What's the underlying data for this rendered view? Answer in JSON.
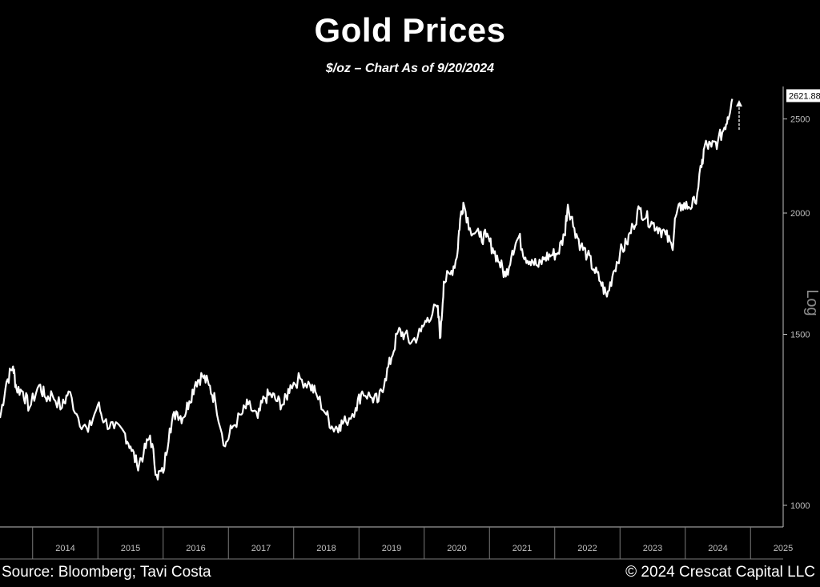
{
  "header": {
    "title": "Gold Prices",
    "subtitle": "$/oz – Chart As of 9/20/2024"
  },
  "footer": {
    "source": "Source: Bloomberg; Tavi Costa",
    "copyright": "© 2024 Crescat Capital LLC"
  },
  "chart_data": {
    "type": "line",
    "title": "Gold Prices",
    "subtitle": "$/oz – Chart As of 9/20/2024",
    "y_scale": "log",
    "y_axis_label": "Log",
    "y_ticks": [
      1000,
      1500,
      2000,
      2500
    ],
    "ylim": [
      950,
      2700
    ],
    "x_ticks": [
      "2014",
      "2015",
      "2016",
      "2017",
      "2018",
      "2019",
      "2020",
      "2021",
      "2022",
      "2023",
      "2024",
      "2025"
    ],
    "xlim": [
      2013.5,
      2025.5
    ],
    "last_value_label": "2621.88",
    "colors": {
      "background": "#000000",
      "line": "#ffffff",
      "axis": "#bfbfbf"
    },
    "series": [
      {
        "values": [
          [
            2013.5,
            1230
          ],
          [
            2013.6,
            1340
          ],
          [
            2013.7,
            1390
          ],
          [
            2013.75,
            1320
          ],
          [
            2013.85,
            1310
          ],
          [
            2013.95,
            1260
          ],
          [
            2014.1,
            1330
          ],
          [
            2014.2,
            1290
          ],
          [
            2014.3,
            1300
          ],
          [
            2014.45,
            1260
          ],
          [
            2014.55,
            1310
          ],
          [
            2014.7,
            1230
          ],
          [
            2014.85,
            1190
          ],
          [
            2015.0,
            1270
          ],
          [
            2015.1,
            1220
          ],
          [
            2015.25,
            1200
          ],
          [
            2015.4,
            1190
          ],
          [
            2015.5,
            1150
          ],
          [
            2015.6,
            1100
          ],
          [
            2015.7,
            1130
          ],
          [
            2015.8,
            1180
          ],
          [
            2015.9,
            1075
          ],
          [
            2016.0,
            1080
          ],
          [
            2016.1,
            1200
          ],
          [
            2016.2,
            1250
          ],
          [
            2016.3,
            1230
          ],
          [
            2016.4,
            1280
          ],
          [
            2016.5,
            1340
          ],
          [
            2016.6,
            1360
          ],
          [
            2016.7,
            1330
          ],
          [
            2016.8,
            1280
          ],
          [
            2016.95,
            1150
          ],
          [
            2017.05,
            1200
          ],
          [
            2017.2,
            1240
          ],
          [
            2017.3,
            1270
          ],
          [
            2017.45,
            1230
          ],
          [
            2017.55,
            1290
          ],
          [
            2017.65,
            1300
          ],
          [
            2017.75,
            1280
          ],
          [
            2017.85,
            1270
          ],
          [
            2017.95,
            1330
          ],
          [
            2018.1,
            1350
          ],
          [
            2018.25,
            1330
          ],
          [
            2018.35,
            1300
          ],
          [
            2018.5,
            1240
          ],
          [
            2018.6,
            1200
          ],
          [
            2018.7,
            1210
          ],
          [
            2018.8,
            1220
          ],
          [
            2018.95,
            1260
          ],
          [
            2019.05,
            1310
          ],
          [
            2019.2,
            1290
          ],
          [
            2019.3,
            1280
          ],
          [
            2019.4,
            1350
          ],
          [
            2019.5,
            1420
          ],
          [
            2019.6,
            1510
          ],
          [
            2019.7,
            1500
          ],
          [
            2019.8,
            1470
          ],
          [
            2019.95,
            1510
          ],
          [
            2020.05,
            1560
          ],
          [
            2020.2,
            1600
          ],
          [
            2020.25,
            1490
          ],
          [
            2020.3,
            1700
          ],
          [
            2020.4,
            1730
          ],
          [
            2020.5,
            1800
          ],
          [
            2020.55,
            1970
          ],
          [
            2020.6,
            2050
          ],
          [
            2020.7,
            1930
          ],
          [
            2020.85,
            1890
          ],
          [
            2020.95,
            1890
          ],
          [
            2021.05,
            1840
          ],
          [
            2021.15,
            1780
          ],
          [
            2021.25,
            1720
          ],
          [
            2021.35,
            1830
          ],
          [
            2021.45,
            1890
          ],
          [
            2021.55,
            1800
          ],
          [
            2021.65,
            1790
          ],
          [
            2021.75,
            1760
          ],
          [
            2021.85,
            1800
          ],
          [
            2021.95,
            1810
          ],
          [
            2022.05,
            1820
          ],
          [
            2022.15,
            1900
          ],
          [
            2022.2,
            2040
          ],
          [
            2022.3,
            1930
          ],
          [
            2022.4,
            1850
          ],
          [
            2022.5,
            1810
          ],
          [
            2022.6,
            1750
          ],
          [
            2022.7,
            1700
          ],
          [
            2022.8,
            1640
          ],
          [
            2022.9,
            1740
          ],
          [
            2023.0,
            1820
          ],
          [
            2023.1,
            1860
          ],
          [
            2023.2,
            1940
          ],
          [
            2023.3,
            2020
          ],
          [
            2023.4,
            1980
          ],
          [
            2023.5,
            1950
          ],
          [
            2023.6,
            1930
          ],
          [
            2023.7,
            1900
          ],
          [
            2023.8,
            1840
          ],
          [
            2023.85,
            1980
          ],
          [
            2023.95,
            2040
          ],
          [
            2024.05,
            2030
          ],
          [
            2024.15,
            2050
          ],
          [
            2024.25,
            2230
          ],
          [
            2024.3,
            2350
          ],
          [
            2024.4,
            2340
          ],
          [
            2024.5,
            2370
          ],
          [
            2024.6,
            2450
          ],
          [
            2024.65,
            2510
          ],
          [
            2024.72,
            2621.88
          ]
        ]
      }
    ]
  }
}
